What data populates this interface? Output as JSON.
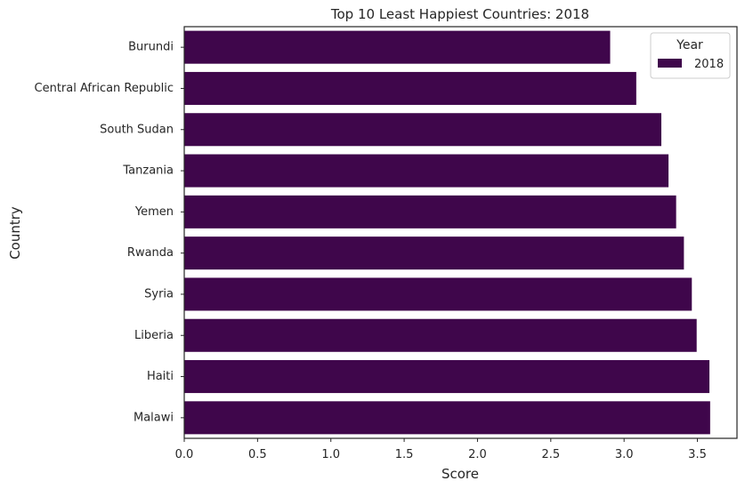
{
  "chart_data": {
    "type": "bar",
    "orientation": "horizontal",
    "title": "Top 10 Least Happiest Countries: 2018",
    "xlabel": "Score",
    "ylabel": "Country",
    "categories": [
      "Burundi",
      "Central African Republic",
      "South Sudan",
      "Tanzania",
      "Yemen",
      "Rwanda",
      "Syria",
      "Liberia",
      "Haiti",
      "Malawi"
    ],
    "series": [
      {
        "name": "2018",
        "values": [
          2.905,
          3.083,
          3.254,
          3.303,
          3.355,
          3.408,
          3.462,
          3.495,
          3.582,
          3.587
        ]
      }
    ],
    "xlim": [
      0,
      3.77
    ],
    "xticks": [
      "0.0",
      "0.5",
      "1.0",
      "1.5",
      "2.0",
      "2.5",
      "3.0",
      "3.5"
    ],
    "grid": false,
    "legend": {
      "title": "Year",
      "placement": "top-right"
    },
    "colors": {
      "bar": "#3f064b",
      "axis": "#262626"
    }
  }
}
